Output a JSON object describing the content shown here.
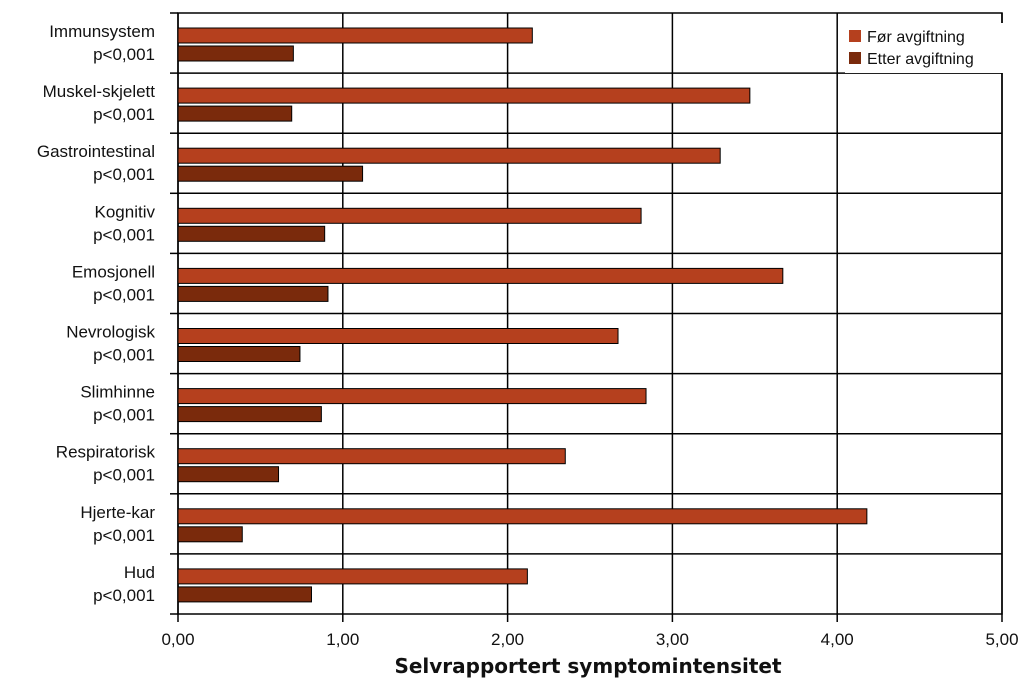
{
  "chart_data": {
    "type": "bar",
    "orientation": "horizontal",
    "categories": [
      "Immunsystem",
      "Muskel-skjelett",
      "Gastrointestinal",
      "Kognitiv",
      "Emosjonell",
      "Nevrologisk",
      "Slimhinne",
      "Respiratorisk",
      "Hjerte-kar",
      "Hud"
    ],
    "p_values": [
      "p<0,001",
      "p<0,001",
      "p<0,001",
      "p<0,001",
      "p<0,001",
      "p<0,001",
      "p<0,001",
      "p<0,001",
      "p<0,001",
      "p<0,001"
    ],
    "series": [
      {
        "name": "Før avgiftning",
        "color": "#B5401E",
        "values": [
          2.15,
          3.47,
          3.29,
          2.81,
          3.67,
          2.67,
          2.84,
          2.35,
          4.18,
          2.12
        ]
      },
      {
        "name": "Etter avgiftning",
        "color": "#7A2A0C",
        "values": [
          0.7,
          0.69,
          1.12,
          0.89,
          0.91,
          0.74,
          0.87,
          0.61,
          0.39,
          0.81
        ]
      }
    ],
    "xlabel": "Selvrapportert symptomintensitet",
    "xlim": [
      0,
      5
    ],
    "xticks": [
      "0,00",
      "1,00",
      "2,00",
      "3,00",
      "4,00",
      "5,00"
    ],
    "grid": true,
    "legend_position": "top-right"
  }
}
